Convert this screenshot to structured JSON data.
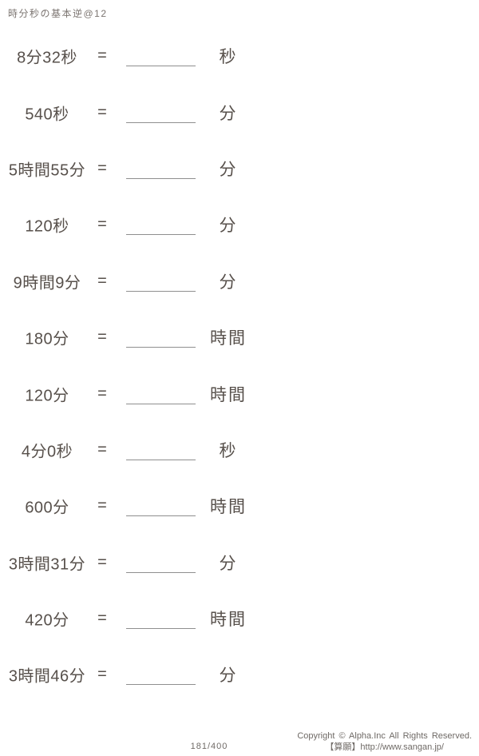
{
  "title": "時分秒の基本逆@12",
  "equals_sign": "=",
  "problems": [
    {
      "expression": "8分32秒",
      "unit": "秒"
    },
    {
      "expression": "540秒",
      "unit": "分"
    },
    {
      "expression": "5時間55分",
      "unit": "分"
    },
    {
      "expression": "120秒",
      "unit": "分"
    },
    {
      "expression": "9時間9分",
      "unit": "分"
    },
    {
      "expression": "180分",
      "unit": "時間"
    },
    {
      "expression": "120分",
      "unit": "時間"
    },
    {
      "expression": "4分0秒",
      "unit": "秒"
    },
    {
      "expression": "600分",
      "unit": "時間"
    },
    {
      "expression": "3時間31分",
      "unit": "分"
    },
    {
      "expression": "420分",
      "unit": "時間"
    },
    {
      "expression": "3時間46分",
      "unit": "分"
    }
  ],
  "footer": {
    "page_number": "181/400",
    "copyright_line1": "Copyright © Alpha.Inc All Rights Reserved.",
    "copyright_line2": "【算願】http://www.sangan.jp/"
  },
  "colors": {
    "text": "#57504b",
    "blank_line": "#8f8f8f",
    "background": "#ffffff"
  }
}
